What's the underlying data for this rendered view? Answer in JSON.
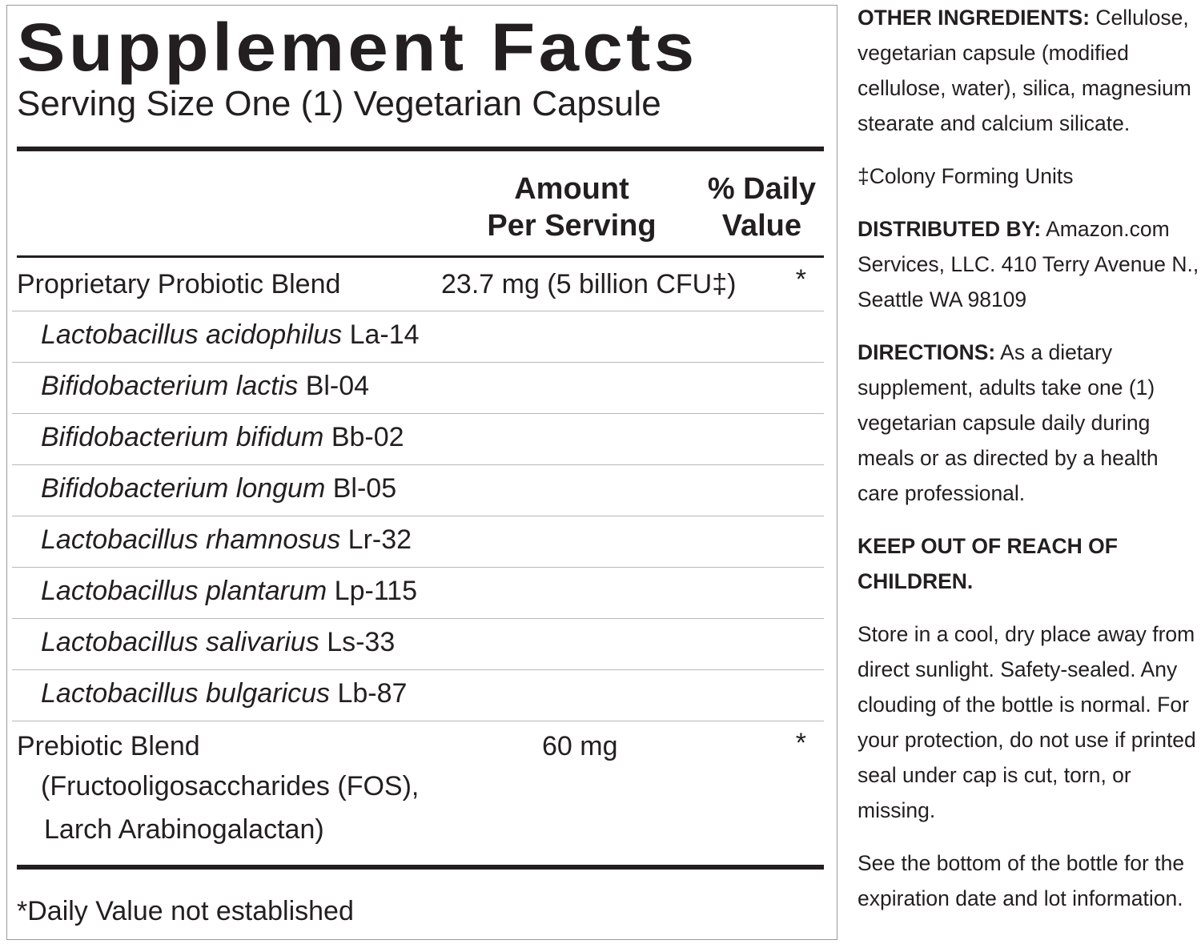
{
  "facts": {
    "title": "Supplement Facts",
    "serving_size": "Serving Size One (1) Vegetarian Capsule",
    "header": {
      "amount": [
        "Amount",
        "Per Serving"
      ],
      "daily_value": [
        "% Daily",
        "Value"
      ]
    },
    "blend": {
      "name": "Proprietary Probiotic Blend",
      "amount": "23.7 mg (5 billion CFU‡)",
      "daily_value": "*"
    },
    "strains": [
      {
        "species": "Lactobacillus acidophilus",
        "strain": "La-14"
      },
      {
        "species": "Bifidobacterium lactis",
        "strain": "Bl-04"
      },
      {
        "species": "Bifidobacterium bifidum",
        "strain": "Bb-02"
      },
      {
        "species": "Bifidobacterium longum",
        "strain": "Bl-05"
      },
      {
        "species": "Lactobacillus rhamnosus",
        "strain": "Lr-32"
      },
      {
        "species": "Lactobacillus plantarum",
        "strain": "Lp-115"
      },
      {
        "species": "Lactobacillus salivarius",
        "strain": "Ls-33"
      },
      {
        "species": "Lactobacillus bulgaricus",
        "strain": "Lb-87"
      }
    ],
    "prebiotic": {
      "name": "Prebiotic Blend",
      "detail": [
        "(Fructooligosaccharides (FOS),",
        "Larch Arabinogalactan)"
      ],
      "amount": "60 mg",
      "daily_value": "*"
    },
    "footnote": "*Daily Value not established"
  },
  "side": [
    {
      "label": "OTHER INGREDIENTS:",
      "text": "Cellulose, vegetarian capsule (modified cellulose, water), silica, magnesium stearate and calcium silicate."
    },
    {
      "text": "‡Colony Forming Units"
    },
    {
      "label": "DISTRIBUTED BY:",
      "text": "Amazon.com Services, LLC. 410 Terry Avenue N., Seattle WA 98109"
    },
    {
      "label": "DIRECTIONS:",
      "text": "As a dietary supplement, adults take one (1) vegetarian capsule daily during meals or as directed by a health care professional."
    },
    {
      "label": "KEEP OUT OF REACH OF CHILDREN."
    },
    {
      "text": "Store in a cool, dry place away from direct sunlight. Safety-sealed. Any clouding of the bottle is normal. For your protection, do not use if printed seal under cap is cut, torn, or missing."
    },
    {
      "text": "See the bottom of the bottle for the expiration date and lot information."
    }
  ]
}
